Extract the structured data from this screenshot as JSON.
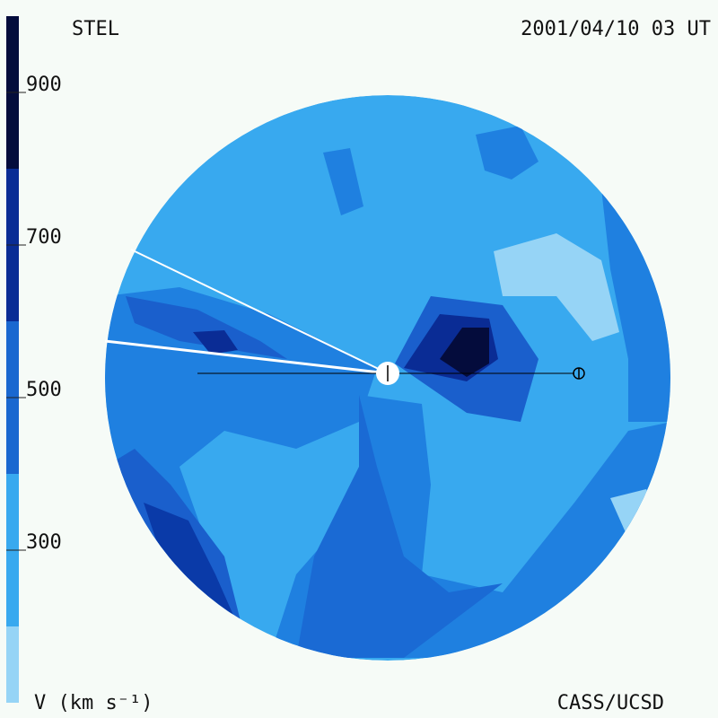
{
  "chart_data": {
    "type": "contour",
    "title": "STEL",
    "subtitle": "2001/04/10 03 UT",
    "credit": "CASS/UCSD",
    "colorbar": {
      "label": "V (km s⁻¹)",
      "lim": [
        100,
        1000
      ],
      "ticks": [
        300,
        500,
        700,
        900
      ],
      "bounds": [
        100,
        200,
        400,
        600,
        800,
        1000
      ],
      "colors": [
        "#96d4f6",
        "#38a9ef",
        "#1a68d0",
        "#0a2c95",
        "#040c3c"
      ]
    }
  }
}
